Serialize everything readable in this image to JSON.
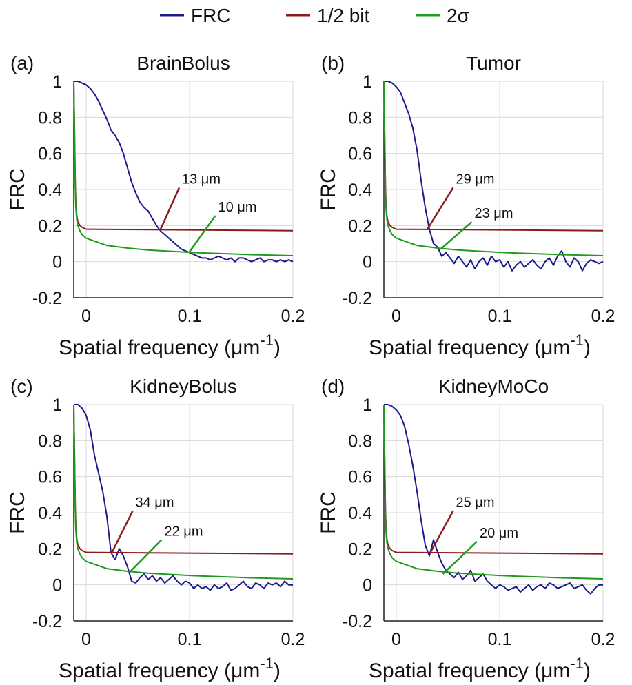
{
  "legend": {
    "placement": "top-center",
    "entries": [
      {
        "label": "FRC",
        "color": "#1a1a8c"
      },
      {
        "label": "1/2 bit",
        "color": "#8b1a1a"
      },
      {
        "label": "2σ",
        "color": "#1f9a1f"
      }
    ]
  },
  "colors": {
    "frc": "#1a1a8c",
    "half_bit": "#8b1a1a",
    "two_sigma": "#1f9a1f",
    "grid": "#d9d9d9"
  },
  "chart_data": [
    {
      "type": "line",
      "panel_label": "(a)",
      "title": "BrainBolus",
      "xlabel": "Spatial frequency (μm",
      "xlabel_sup": "-1",
      "xlabel_close": ")",
      "ylabel": "FRC",
      "xlim": [
        -0.012,
        0.2
      ],
      "ylim": [
        -0.2,
        1.0
      ],
      "xticks": [
        "0",
        "0.1",
        "0.2"
      ],
      "xtick_values": [
        0,
        0.1,
        0.2
      ],
      "yticks": [
        "-0.2",
        "0",
        "0.2",
        "0.4",
        "0.6",
        "0.8",
        "1"
      ],
      "ytick_values": [
        -0.2,
        0,
        0.2,
        0.4,
        0.6,
        0.8,
        1.0
      ],
      "grid": true,
      "series": [
        {
          "name": "FRC",
          "x": [
            -0.012,
            -0.008,
            -0.004,
            0,
            0.004,
            0.008,
            0.012,
            0.016,
            0.02,
            0.024,
            0.028,
            0.032,
            0.036,
            0.04,
            0.044,
            0.048,
            0.052,
            0.056,
            0.06,
            0.064,
            0.068,
            0.072,
            0.076,
            0.08,
            0.084,
            0.088,
            0.092,
            0.096,
            0.1,
            0.104,
            0.108,
            0.112,
            0.116,
            0.12,
            0.124,
            0.128,
            0.132,
            0.136,
            0.14,
            0.144,
            0.148,
            0.152,
            0.156,
            0.16,
            0.164,
            0.168,
            0.172,
            0.176,
            0.18,
            0.184,
            0.188,
            0.192,
            0.196,
            0.2
          ],
          "y": [
            1.0,
            1.0,
            0.99,
            0.98,
            0.96,
            0.93,
            0.89,
            0.84,
            0.79,
            0.73,
            0.7,
            0.66,
            0.6,
            0.52,
            0.44,
            0.38,
            0.33,
            0.3,
            0.28,
            0.24,
            0.2,
            0.17,
            0.15,
            0.13,
            0.11,
            0.09,
            0.07,
            0.06,
            0.05,
            0.04,
            0.03,
            0.02,
            0.02,
            0.01,
            0.02,
            0.03,
            0.02,
            0.01,
            0.02,
            0.0,
            0.02,
            0.02,
            0.01,
            0.0,
            0.01,
            0.02,
            0.0,
            0.01,
            0.01,
            0.0,
            0.01,
            0.0,
            0.01,
            0.0
          ]
        },
        {
          "name": "1/2 bit",
          "x": [
            -0.012,
            -0.011,
            -0.0105,
            -0.01,
            -0.009,
            -0.008,
            -0.006,
            -0.004,
            0,
            0.2
          ],
          "y": [
            1.0,
            0.62,
            0.42,
            0.33,
            0.25,
            0.22,
            0.2,
            0.19,
            0.18,
            0.172
          ]
        },
        {
          "name": "2σ",
          "x": [
            -0.012,
            -0.011,
            -0.0105,
            -0.01,
            -0.009,
            -0.008,
            -0.006,
            -0.004,
            0,
            0.01,
            0.02,
            0.04,
            0.06,
            0.08,
            0.1,
            0.12,
            0.14,
            0.16,
            0.18,
            0.2
          ],
          "y": [
            1.0,
            0.6,
            0.4,
            0.3,
            0.23,
            0.2,
            0.17,
            0.15,
            0.13,
            0.11,
            0.09,
            0.075,
            0.065,
            0.058,
            0.052,
            0.047,
            0.043,
            0.039,
            0.036,
            0.033
          ]
        }
      ],
      "annotations": [
        {
          "text": "13 μm",
          "color": "#8b1a1a",
          "x": 0.072,
          "y": 0.18,
          "tx": 0.09,
          "ty": 0.41
        },
        {
          "text": "10 μm",
          "color": "#1f9a1f",
          "x": 0.1,
          "y": 0.055,
          "tx": 0.125,
          "ty": 0.255
        }
      ]
    },
    {
      "type": "line",
      "panel_label": "(b)",
      "title": "Tumor",
      "xlabel": "Spatial frequency (μm",
      "xlabel_sup": "-1",
      "xlabel_close": ")",
      "ylabel": "FRC",
      "xlim": [
        -0.012,
        0.2
      ],
      "ylim": [
        -0.2,
        1.0
      ],
      "xticks": [
        "0",
        "0.1",
        "0.2"
      ],
      "xtick_values": [
        0,
        0.1,
        0.2
      ],
      "yticks": [
        "-0.2",
        "0",
        "0.2",
        "0.4",
        "0.6",
        "0.8",
        "1"
      ],
      "ytick_values": [
        -0.2,
        0,
        0.2,
        0.4,
        0.6,
        0.8,
        1.0
      ],
      "grid": true,
      "series": [
        {
          "name": "FRC",
          "x": [
            -0.012,
            -0.008,
            -0.004,
            0,
            0.004,
            0.008,
            0.012,
            0.016,
            0.02,
            0.024,
            0.028,
            0.032,
            0.036,
            0.04,
            0.044,
            0.048,
            0.052,
            0.056,
            0.06,
            0.064,
            0.068,
            0.072,
            0.076,
            0.08,
            0.084,
            0.088,
            0.092,
            0.096,
            0.1,
            0.104,
            0.108,
            0.112,
            0.116,
            0.12,
            0.124,
            0.128,
            0.132,
            0.136,
            0.14,
            0.144,
            0.148,
            0.152,
            0.156,
            0.16,
            0.164,
            0.168,
            0.172,
            0.176,
            0.18,
            0.184,
            0.188,
            0.192,
            0.196,
            0.2
          ],
          "y": [
            1.0,
            1.0,
            0.99,
            0.97,
            0.94,
            0.88,
            0.82,
            0.74,
            0.62,
            0.45,
            0.3,
            0.18,
            0.1,
            0.08,
            0.03,
            0.05,
            0.02,
            -0.01,
            0.03,
            0.0,
            -0.03,
            0.01,
            -0.04,
            0.0,
            0.02,
            -0.02,
            0.03,
            0.0,
            0.01,
            -0.03,
            0.0,
            -0.05,
            -0.02,
            0.0,
            -0.03,
            -0.01,
            0.01,
            -0.02,
            -0.04,
            0.0,
            0.02,
            -0.02,
            0.03,
            0.06,
            0.0,
            -0.03,
            0.02,
            0.0,
            -0.05,
            -0.01,
            0.01,
            0.0,
            -0.01,
            0.0
          ]
        },
        {
          "name": "1/2 bit",
          "x": [
            -0.012,
            -0.011,
            -0.0105,
            -0.01,
            -0.009,
            -0.008,
            -0.006,
            -0.004,
            0,
            0.2
          ],
          "y": [
            1.0,
            0.62,
            0.42,
            0.33,
            0.25,
            0.22,
            0.2,
            0.19,
            0.18,
            0.172
          ]
        },
        {
          "name": "2σ",
          "x": [
            -0.012,
            -0.011,
            -0.0105,
            -0.01,
            -0.009,
            -0.008,
            -0.006,
            -0.004,
            0,
            0.01,
            0.02,
            0.04,
            0.06,
            0.08,
            0.1,
            0.12,
            0.14,
            0.16,
            0.18,
            0.2
          ],
          "y": [
            1.0,
            0.6,
            0.4,
            0.3,
            0.23,
            0.2,
            0.17,
            0.15,
            0.13,
            0.11,
            0.09,
            0.075,
            0.065,
            0.058,
            0.052,
            0.047,
            0.043,
            0.039,
            0.036,
            0.033
          ]
        }
      ],
      "annotations": [
        {
          "text": "29 μm",
          "color": "#8b1a1a",
          "x": 0.03,
          "y": 0.18,
          "tx": 0.055,
          "ty": 0.41
        },
        {
          "text": "23 μm",
          "color": "#1f9a1f",
          "x": 0.043,
          "y": 0.07,
          "tx": 0.073,
          "ty": 0.22
        }
      ]
    },
    {
      "type": "line",
      "panel_label": "(c)",
      "title": "KidneyBolus",
      "xlabel": "Spatial frequency (μm",
      "xlabel_sup": "-1",
      "xlabel_close": ")",
      "ylabel": "FRC",
      "xlim": [
        -0.012,
        0.2
      ],
      "ylim": [
        -0.2,
        1.0
      ],
      "xticks": [
        "0",
        "0.1",
        "0.2"
      ],
      "xtick_values": [
        0,
        0.1,
        0.2
      ],
      "yticks": [
        "-0.2",
        "0",
        "0.2",
        "0.4",
        "0.6",
        "0.8",
        "1"
      ],
      "ytick_values": [
        -0.2,
        0,
        0.2,
        0.4,
        0.6,
        0.8,
        1.0
      ],
      "grid": true,
      "series": [
        {
          "name": "FRC",
          "x": [
            -0.012,
            -0.008,
            -0.004,
            0,
            0.004,
            0.008,
            0.012,
            0.016,
            0.02,
            0.024,
            0.028,
            0.032,
            0.036,
            0.04,
            0.044,
            0.048,
            0.052,
            0.056,
            0.06,
            0.064,
            0.068,
            0.072,
            0.076,
            0.08,
            0.084,
            0.088,
            0.092,
            0.096,
            0.1,
            0.104,
            0.108,
            0.112,
            0.116,
            0.12,
            0.124,
            0.128,
            0.132,
            0.136,
            0.14,
            0.144,
            0.148,
            0.152,
            0.156,
            0.16,
            0.164,
            0.168,
            0.172,
            0.176,
            0.18,
            0.184,
            0.188,
            0.192,
            0.196,
            0.2
          ],
          "y": [
            1.0,
            1.0,
            0.98,
            0.94,
            0.86,
            0.72,
            0.62,
            0.52,
            0.38,
            0.18,
            0.14,
            0.2,
            0.16,
            0.1,
            0.02,
            0.01,
            0.04,
            0.06,
            0.03,
            0.05,
            0.02,
            0.04,
            0.01,
            0.03,
            0.05,
            0.02,
            0.0,
            0.02,
            0.01,
            -0.02,
            0.0,
            -0.02,
            -0.01,
            -0.03,
            0.0,
            -0.02,
            -0.01,
            0.01,
            -0.03,
            -0.02,
            0.0,
            0.02,
            -0.01,
            -0.02,
            0.01,
            0.0,
            -0.02,
            0.01,
            0.0,
            0.01,
            -0.01,
            0.02,
            0.0,
            0.0
          ]
        },
        {
          "name": "1/2 bit",
          "x": [
            -0.012,
            -0.011,
            -0.0105,
            -0.01,
            -0.009,
            -0.008,
            -0.006,
            -0.004,
            0,
            0.2
          ],
          "y": [
            1.0,
            0.62,
            0.42,
            0.33,
            0.25,
            0.22,
            0.2,
            0.19,
            0.18,
            0.172
          ]
        },
        {
          "name": "2σ",
          "x": [
            -0.012,
            -0.011,
            -0.0105,
            -0.01,
            -0.009,
            -0.008,
            -0.006,
            -0.004,
            0,
            0.01,
            0.02,
            0.04,
            0.06,
            0.08,
            0.1,
            0.12,
            0.14,
            0.16,
            0.18,
            0.2
          ],
          "y": [
            1.0,
            0.6,
            0.4,
            0.3,
            0.23,
            0.2,
            0.17,
            0.15,
            0.13,
            0.11,
            0.09,
            0.075,
            0.065,
            0.058,
            0.052,
            0.047,
            0.043,
            0.039,
            0.036,
            0.033
          ]
        }
      ],
      "annotations": [
        {
          "text": "34 μm",
          "color": "#8b1a1a",
          "x": 0.025,
          "y": 0.18,
          "tx": 0.045,
          "ty": 0.41
        },
        {
          "text": "22 μm",
          "color": "#1f9a1f",
          "x": 0.042,
          "y": 0.07,
          "tx": 0.073,
          "ty": 0.25
        }
      ]
    },
    {
      "type": "line",
      "panel_label": "(d)",
      "title": "KidneyMoCo",
      "xlabel": "Spatial frequency (μm",
      "xlabel_sup": "-1",
      "xlabel_close": ")",
      "ylabel": "FRC",
      "xlim": [
        -0.012,
        0.2
      ],
      "ylim": [
        -0.2,
        1.0
      ],
      "xticks": [
        "0",
        "0.1",
        "0.2"
      ],
      "xtick_values": [
        0,
        0.1,
        0.2
      ],
      "yticks": [
        "-0.2",
        "0",
        "0.2",
        "0.4",
        "0.6",
        "0.8",
        "1"
      ],
      "ytick_values": [
        -0.2,
        0,
        0.2,
        0.4,
        0.6,
        0.8,
        1.0
      ],
      "grid": true,
      "series": [
        {
          "name": "FRC",
          "x": [
            -0.012,
            -0.008,
            -0.004,
            0,
            0.004,
            0.008,
            0.012,
            0.016,
            0.02,
            0.024,
            0.028,
            0.032,
            0.036,
            0.04,
            0.044,
            0.048,
            0.052,
            0.056,
            0.06,
            0.064,
            0.068,
            0.072,
            0.076,
            0.08,
            0.084,
            0.088,
            0.092,
            0.096,
            0.1,
            0.104,
            0.108,
            0.112,
            0.116,
            0.12,
            0.124,
            0.128,
            0.132,
            0.136,
            0.14,
            0.144,
            0.148,
            0.152,
            0.156,
            0.16,
            0.164,
            0.168,
            0.172,
            0.176,
            0.18,
            0.184,
            0.188,
            0.192,
            0.196,
            0.2
          ],
          "y": [
            1.0,
            1.0,
            0.99,
            0.97,
            0.94,
            0.88,
            0.78,
            0.66,
            0.52,
            0.36,
            0.22,
            0.16,
            0.25,
            0.18,
            0.12,
            0.08,
            0.06,
            0.04,
            0.07,
            0.03,
            0.05,
            0.08,
            0.02,
            0.04,
            0.06,
            0.02,
            0.0,
            -0.02,
            0.0,
            -0.01,
            -0.03,
            -0.02,
            -0.01,
            -0.04,
            -0.02,
            0.0,
            -0.03,
            -0.01,
            0.0,
            -0.02,
            0.01,
            0.0,
            -0.02,
            -0.01,
            0.0,
            0.01,
            -0.02,
            -0.01,
            0.0,
            -0.03,
            -0.05,
            -0.02,
            0.0,
            0.0
          ]
        },
        {
          "name": "1/2 bit",
          "x": [
            -0.012,
            -0.011,
            -0.0105,
            -0.01,
            -0.009,
            -0.008,
            -0.006,
            -0.004,
            0,
            0.2
          ],
          "y": [
            1.0,
            0.62,
            0.42,
            0.33,
            0.25,
            0.22,
            0.2,
            0.19,
            0.18,
            0.172
          ]
        },
        {
          "name": "2σ",
          "x": [
            -0.012,
            -0.011,
            -0.0105,
            -0.01,
            -0.009,
            -0.008,
            -0.006,
            -0.004,
            0,
            0.01,
            0.02,
            0.04,
            0.06,
            0.08,
            0.1,
            0.12,
            0.14,
            0.16,
            0.18,
            0.2
          ],
          "y": [
            1.0,
            0.6,
            0.4,
            0.3,
            0.23,
            0.2,
            0.17,
            0.15,
            0.13,
            0.11,
            0.09,
            0.075,
            0.065,
            0.058,
            0.052,
            0.047,
            0.043,
            0.039,
            0.036,
            0.033
          ]
        }
      ],
      "annotations": [
        {
          "text": "25 μm",
          "color": "#8b1a1a",
          "x": 0.033,
          "y": 0.18,
          "tx": 0.055,
          "ty": 0.41
        },
        {
          "text": "20 μm",
          "color": "#1f9a1f",
          "x": 0.045,
          "y": 0.06,
          "tx": 0.078,
          "ty": 0.24
        }
      ]
    }
  ]
}
